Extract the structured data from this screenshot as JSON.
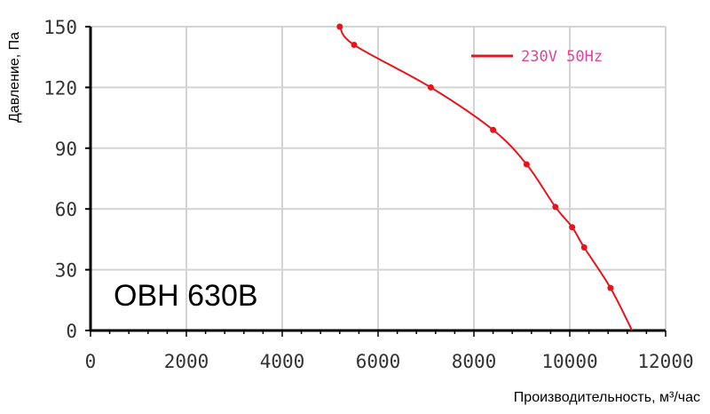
{
  "chart_data": {
    "type": "line",
    "title": "",
    "annotation": "OBH 630B",
    "xlabel": "Производительность, м³/час",
    "ylabel": "Давление, Па",
    "xlim": [
      0,
      12000
    ],
    "ylim": [
      0,
      150
    ],
    "x_ticks": [
      "0",
      "2000",
      "4000",
      "6000",
      "8000",
      "10000",
      "12000"
    ],
    "y_ticks": [
      "0",
      "30",
      "60",
      "90",
      "120",
      "150"
    ],
    "grid": true,
    "legend_position": "top-right",
    "series": [
      {
        "name": "230V 50Hz",
        "color": "#e8141b",
        "label_color": "#e0459a",
        "x": [
          5200,
          5500,
          7100,
          8400,
          9100,
          9700,
          10050,
          10300,
          10850,
          11300
        ],
        "y": [
          150,
          141,
          120,
          99,
          82,
          61,
          51,
          41,
          21,
          0
        ]
      }
    ]
  }
}
